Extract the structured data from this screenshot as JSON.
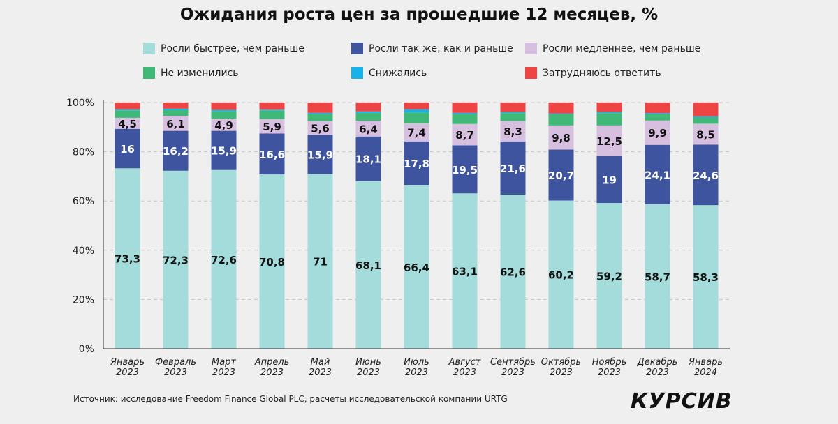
{
  "chart_data": {
    "type": "bar",
    "stacked": true,
    "title": "Ожидания роста цен за прошедшие 12 месяцев, %",
    "categories": [
      [
        "Январь",
        "2023"
      ],
      [
        "Февраль",
        "2023"
      ],
      [
        "Март",
        "2023"
      ],
      [
        "Апрель",
        "2023"
      ],
      [
        "Май",
        "2023"
      ],
      [
        "Июнь",
        "2023"
      ],
      [
        "Июль",
        "2023"
      ],
      [
        "Август",
        "2023"
      ],
      [
        "Сентябрь",
        "2023"
      ],
      [
        "Октябрь",
        "2023"
      ],
      [
        "Ноябрь",
        "2023"
      ],
      [
        "Декабрь",
        "2023"
      ],
      [
        "Январь",
        "2024"
      ]
    ],
    "yticks": [
      "0%",
      "20%",
      "40%",
      "60%",
      "80%",
      "100%"
    ],
    "ylim": [
      0,
      100
    ],
    "grid": true,
    "legend_position": "top",
    "series": [
      {
        "name": "Росли быстрее, чем раньше",
        "color": "#a3dcda",
        "labeled": true,
        "values": [
          73.3,
          72.3,
          72.6,
          70.8,
          71,
          68.1,
          66.4,
          63.1,
          62.6,
          60.2,
          59.2,
          58.7,
          58.3
        ]
      },
      {
        "name": "Росли так же, как и раньше",
        "color": "#3f549f",
        "labeled": true,
        "values": [
          16,
          16.2,
          15.9,
          16.6,
          15.9,
          18.1,
          17.8,
          19.5,
          21.6,
          20.7,
          19,
          24.1,
          24.6
        ]
      },
      {
        "name": "Росли медленнее, чем раньше",
        "color": "#d6bfdf",
        "labeled": true,
        "values": [
          4.5,
          6.1,
          4.9,
          5.9,
          5.6,
          6.4,
          7.4,
          8.7,
          8.3,
          9.8,
          12.5,
          9.9,
          8.5
        ]
      },
      {
        "name": "Не изменились",
        "color": "#40b978",
        "labeled": false,
        "values": [
          3.0,
          2.3,
          3.1,
          3.4,
          2.7,
          3.2,
          4.4,
          3.9,
          3.2,
          4.5,
          5.0,
          2.5,
          2.5
        ]
      },
      {
        "name": "Снижались",
        "color": "#18b2e8",
        "labeled": false,
        "values": [
          0.4,
          0.6,
          0.5,
          0.4,
          0.6,
          0.6,
          1.2,
          0.6,
          0.5,
          0.3,
          0.5,
          0.5,
          0.5
        ]
      },
      {
        "name": "Затрудняюсь ответить",
        "color": "#ef4444",
        "labeled": false,
        "values": [
          2.8,
          2.5,
          3.0,
          2.9,
          4.2,
          3.6,
          2.8,
          4.2,
          3.8,
          4.5,
          3.8,
          4.3,
          5.6
        ]
      }
    ]
  },
  "source": "Источник: исследование Freedom Finance Global PLC, расчеты исследовательской компании URTG",
  "logo": "КУРСИВ"
}
